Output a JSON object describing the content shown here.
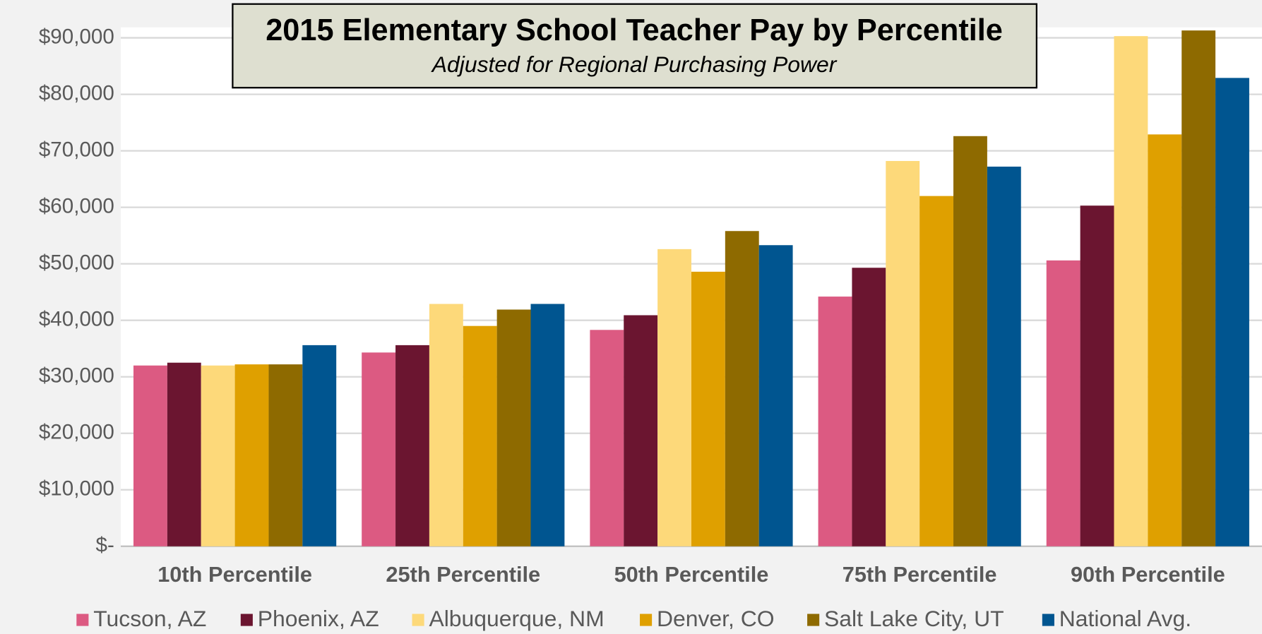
{
  "chart_data": {
    "type": "bar",
    "title": "2015 Elementary School Teacher Pay by Percentile",
    "subtitle": "Adjusted for Regional Purchasing Power",
    "categories": [
      "10th Percentile",
      "25th Percentile",
      "50th Percentile",
      "75th Percentile",
      "90th Percentile"
    ],
    "series": [
      {
        "name": "Tucson, AZ",
        "color": "#dc5a82",
        "values": [
          32000,
          34300,
          38300,
          44200,
          50600
        ]
      },
      {
        "name": "Phoenix, AZ",
        "color": "#6b1530",
        "values": [
          32500,
          35600,
          40900,
          49300,
          60300
        ]
      },
      {
        "name": "Albuquerque, NM",
        "color": "#fdd97a",
        "values": [
          32000,
          42900,
          52600,
          68200,
          90300
        ]
      },
      {
        "name": "Denver, CO",
        "color": "#dfa000",
        "values": [
          32200,
          39000,
          48600,
          62000,
          72900
        ]
      },
      {
        "name": "Salt Lake City, UT",
        "color": "#8e6a00",
        "values": [
          32200,
          41900,
          55800,
          72600,
          91300
        ]
      },
      {
        "name": "National Avg.",
        "color": "#005590",
        "values": [
          35600,
          42900,
          53300,
          67200,
          82900
        ]
      }
    ],
    "ylim": [
      0,
      90000
    ],
    "yticks": [
      {
        "value": 0,
        "label": "$-"
      },
      {
        "value": 10000,
        "label": "$10,000"
      },
      {
        "value": 20000,
        "label": "$20,000"
      },
      {
        "value": 30000,
        "label": "$30,000"
      },
      {
        "value": 40000,
        "label": "$40,000"
      },
      {
        "value": 50000,
        "label": "$50,000"
      },
      {
        "value": 60000,
        "label": "$60,000"
      },
      {
        "value": 70000,
        "label": "$70,000"
      },
      {
        "value": 80000,
        "label": "$80,000"
      },
      {
        "value": 90000,
        "label": "$90,000"
      }
    ],
    "grid": true,
    "legend": "bottom"
  }
}
